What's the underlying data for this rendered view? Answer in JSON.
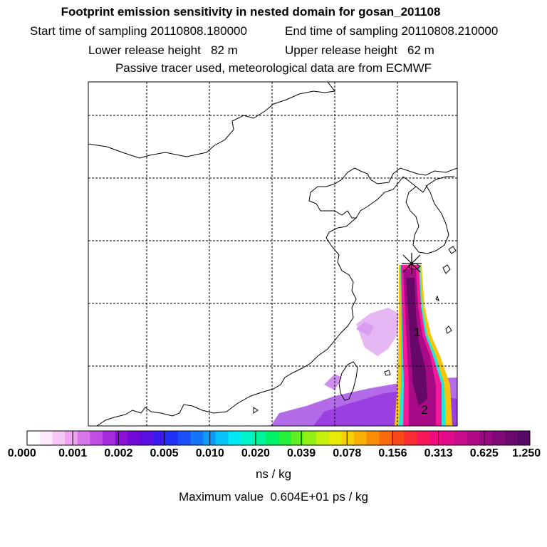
{
  "header": {
    "title": "Footprint emission sensitivity in nested domain for gosan_201108",
    "start_time": "Start time of sampling 20110808.180000",
    "end_time": "End time of sampling 20110808.210000",
    "lower_height": "Lower release height   82 m",
    "upper_height": "Upper release height   62 m",
    "tracer_note": "Passive tracer used, meteorological data are from ECMWF"
  },
  "map": {
    "receptor_marker": "receptor-star",
    "labels": [
      "1",
      "2"
    ]
  },
  "legend": {
    "ticks": [
      "0.000",
      "0.001",
      "0.002",
      "0.005",
      "0.010",
      "0.020",
      "0.039",
      "0.078",
      "0.156",
      "0.313",
      "0.625",
      "1.250"
    ],
    "colors": [
      "#ffffff",
      "#fde8fc",
      "#f7c8f5",
      "#eea4f0",
      "#d977ec",
      "#c24ee6",
      "#a62ade",
      "#8a10d8",
      "#7209d6",
      "#5a0ee0",
      "#3a18ee",
      "#2030f4",
      "#1a50f6",
      "#1675f7",
      "#109af8",
      "#08c2f8",
      "#00e8f5",
      "#00f5cc",
      "#00f59a",
      "#00f266",
      "#22f03a",
      "#5ef022",
      "#92f014",
      "#c4f00c",
      "#eaea08",
      "#f7d006",
      "#f8b005",
      "#f88e06",
      "#f86a0c",
      "#f84818",
      "#f82c30",
      "#f8185a",
      "#f00c80",
      "#e00c8c",
      "#c80c8a",
      "#b00a86",
      "#980880",
      "#800878",
      "#6a0870",
      "#560866"
    ],
    "unit": "ns / kg",
    "max_value": "Maximum value  0.604E+01 ps / kg"
  }
}
